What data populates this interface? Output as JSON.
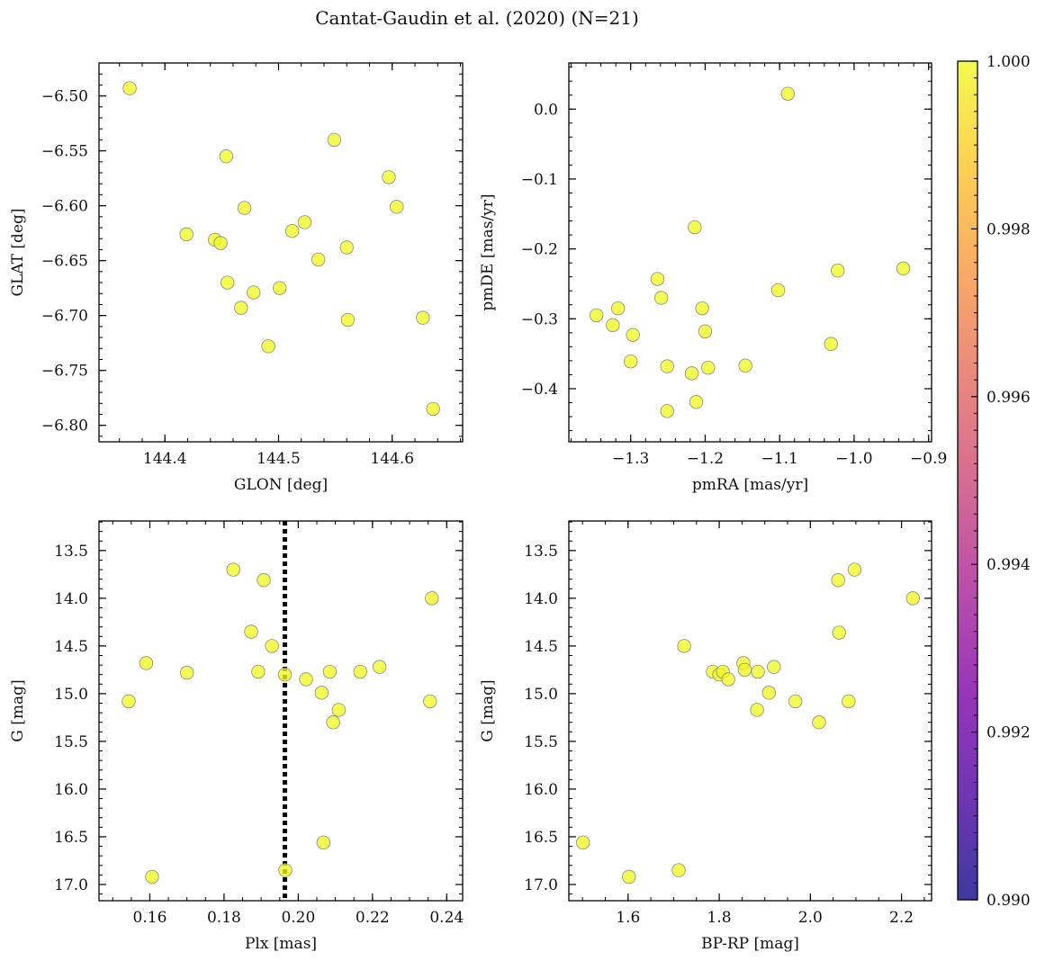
{
  "figure": {
    "title": "Cantat-Gaudin et al. (2020) (N=21)"
  },
  "colors": {
    "point_fill": "#f0f921",
    "point_edge": "#8a8a8a",
    "axis": "#000000",
    "vline": "#000000"
  },
  "colorbar": {
    "colormap": "plasma",
    "min": 0.99,
    "max": 1.0,
    "ticks": [
      "0.990",
      "0.992",
      "0.994",
      "0.996",
      "0.998",
      "1.000"
    ],
    "tick_values": [
      0.99,
      0.992,
      0.994,
      0.996,
      0.998,
      1.0
    ]
  },
  "chart_data": [
    {
      "id": "glon-glat",
      "type": "scatter",
      "title": "",
      "xlabel": "GLON [deg]",
      "ylabel": "GLAT [deg]",
      "xlim": [
        144.342,
        144.662
      ],
      "ylim": [
        -6.815,
        -6.47
      ],
      "y_inverted": false,
      "xticks": [
        144.4,
        144.5,
        144.6
      ],
      "xtick_labels": [
        "144.4",
        "144.5",
        "144.6"
      ],
      "xminor_step": 0.02,
      "yticks": [
        -6.8,
        -6.75,
        -6.7,
        -6.65,
        -6.6,
        -6.55,
        -6.5
      ],
      "ytick_labels": [
        "−6.80",
        "−6.75",
        "−6.70",
        "−6.65",
        "−6.60",
        "−6.55",
        "−6.50"
      ],
      "yminor_step": 0.01,
      "x": [
        144.369,
        144.419,
        144.444,
        144.449,
        144.454,
        144.455,
        144.467,
        144.47,
        144.478,
        144.491,
        144.501,
        144.512,
        144.523,
        144.535,
        144.549,
        144.56,
        144.561,
        144.597,
        144.604,
        144.627,
        144.636
      ],
      "y": [
        -6.493,
        -6.626,
        -6.631,
        -6.634,
        -6.555,
        -6.67,
        -6.693,
        -6.602,
        -6.679,
        -6.728,
        -6.675,
        -6.623,
        -6.615,
        -6.649,
        -6.54,
        -6.638,
        -6.704,
        -6.574,
        -6.601,
        -6.702,
        -6.785
      ]
    },
    {
      "id": "pm",
      "type": "scatter",
      "title": "",
      "xlabel": "pmRA [mas/yr]",
      "ylabel": "pmDE [mas/yr]",
      "xlim": [
        -1.383,
        -0.896
      ],
      "ylim": [
        -0.476,
        0.066
      ],
      "y_inverted": false,
      "xticks": [
        -1.3,
        -1.2,
        -1.1,
        -1.0,
        -0.9
      ],
      "xtick_labels": [
        "−1.3",
        "−1.2",
        "−1.1",
        "−1.0",
        "−0.9"
      ],
      "xminor_step": 0.02,
      "yticks": [
        -0.4,
        -0.3,
        -0.2,
        -0.1,
        0.0
      ],
      "ytick_labels": [
        "−0.4",
        "−0.3",
        "−0.2",
        "−0.1",
        "0.0"
      ],
      "yminor_step": 0.02,
      "x": [
        -1.346,
        -1.324,
        -1.317,
        -1.3,
        -1.297,
        -1.264,
        -1.259,
        -1.251,
        -1.251,
        -1.218,
        -1.214,
        -1.212,
        -1.204,
        -1.2,
        -1.196,
        -1.146,
        -1.102,
        -1.089,
        -1.031,
        -1.022,
        -0.934
      ],
      "y": [
        -0.295,
        -0.309,
        -0.285,
        -0.361,
        -0.323,
        -0.243,
        -0.27,
        -0.368,
        -0.432,
        -0.378,
        -0.169,
        -0.419,
        -0.285,
        -0.318,
        -0.37,
        -0.367,
        -0.259,
        0.022,
        -0.336,
        -0.231,
        -0.228
      ]
    },
    {
      "id": "plx-g",
      "type": "scatter",
      "title": "",
      "xlabel": "Plx [mas]",
      "ylabel": "G [mag]",
      "xlim": [
        0.1463,
        0.2443
      ],
      "ylim": [
        13.19,
        17.17
      ],
      "y_inverted": true,
      "xticks": [
        0.16,
        0.18,
        0.2,
        0.22,
        0.24
      ],
      "xtick_labels": [
        "0.16",
        "0.18",
        "0.20",
        "0.22",
        "0.24"
      ],
      "xminor_step": 0.005,
      "yticks": [
        13.5,
        14.0,
        14.5,
        15.0,
        15.5,
        16.0,
        16.5,
        17.0
      ],
      "ytick_labels": [
        "13.5",
        "14.0",
        "14.5",
        "15.0",
        "15.5",
        "16.0",
        "16.5",
        "17.0"
      ],
      "yminor_step": 0.1,
      "vline_x": 0.1964,
      "x": [
        0.1543,
        0.159,
        0.1606,
        0.17,
        0.1825,
        0.1873,
        0.1892,
        0.1907,
        0.1929,
        0.1964,
        0.1965,
        0.2021,
        0.2063,
        0.2068,
        0.2085,
        0.2094,
        0.2109,
        0.2167,
        0.2219,
        0.2355,
        0.236
      ],
      "y": [
        15.08,
        14.68,
        16.92,
        14.78,
        13.7,
        14.35,
        14.77,
        13.81,
        14.5,
        14.8,
        16.85,
        14.85,
        14.99,
        16.56,
        14.77,
        15.3,
        15.17,
        14.77,
        14.72,
        15.08,
        14.0
      ]
    },
    {
      "id": "bprp-g",
      "type": "scatter",
      "title": "",
      "xlabel": "BP-RP [mag]",
      "ylabel": "G [mag]",
      "xlim": [
        1.47,
        2.266
      ],
      "ylim": [
        13.19,
        17.17
      ],
      "y_inverted": true,
      "xticks": [
        1.6,
        1.8,
        2.0,
        2.2
      ],
      "xtick_labels": [
        "1.6",
        "1.8",
        "2.0",
        "2.2"
      ],
      "xminor_step": 0.05,
      "yticks": [
        13.5,
        14.0,
        14.5,
        15.0,
        15.5,
        16.0,
        16.5,
        17.0
      ],
      "ytick_labels": [
        "13.5",
        "14.0",
        "14.5",
        "15.0",
        "15.5",
        "16.0",
        "16.5",
        "17.0"
      ],
      "yminor_step": 0.1,
      "x": [
        1.501,
        1.602,
        1.711,
        1.723,
        1.786,
        1.8,
        1.808,
        1.82,
        1.853,
        1.856,
        1.883,
        1.885,
        1.909,
        1.92,
        1.967,
        2.019,
        2.061,
        2.063,
        2.084,
        2.097,
        2.225
      ],
      "y": [
        16.56,
        16.92,
        16.85,
        14.5,
        14.77,
        14.8,
        14.77,
        14.85,
        14.68,
        14.75,
        15.17,
        14.77,
        14.99,
        14.72,
        15.08,
        15.3,
        13.81,
        14.36,
        15.08,
        13.7,
        14.0
      ]
    }
  ]
}
